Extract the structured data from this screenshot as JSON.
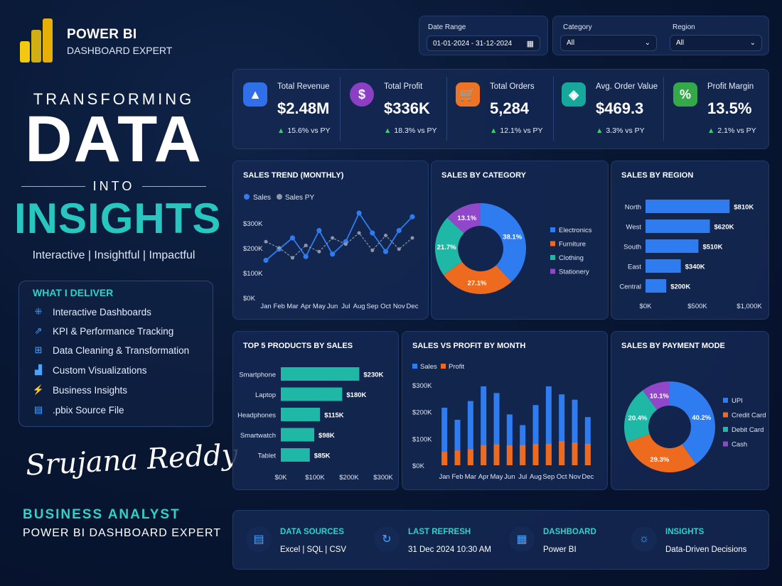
{
  "brand": {
    "line1": "POWER BI",
    "line2": "DASHBOARD EXPERT"
  },
  "hero": {
    "transforming": "TRANSFORMING",
    "data": "DATA",
    "into": "INTO",
    "insights": "INSIGHTS",
    "tagline": "Interactive | Insightful | Impactful"
  },
  "deliver": {
    "title": "WHAT I DELIVER",
    "items": [
      {
        "icon": "dashboard-icon",
        "label": "Interactive Dashboards"
      },
      {
        "icon": "kpi-tracking-icon",
        "label": "KPI & Performance Tracking"
      },
      {
        "icon": "data-cleaning-icon",
        "label": "Data Cleaning & Transformation"
      },
      {
        "icon": "visualization-icon",
        "label": "Custom Visualizations"
      },
      {
        "icon": "insights-icon",
        "label": "Business Insights"
      },
      {
        "icon": "file-icon",
        "label": ".pbix Source File"
      }
    ]
  },
  "profile": {
    "signature": "Srujana Reddy",
    "role": "BUSINESS ANALYST",
    "title": "POWER BI DASHBOARD EXPERT"
  },
  "filters": {
    "date_range_label": "Date Range",
    "date_range_value": "01-01-2024 - 31-12-2024",
    "category_label": "Category",
    "category_value": "All",
    "region_label": "Region",
    "region_value": "All"
  },
  "kpis": [
    {
      "icon": "chart-icon",
      "color": "#2f6fe8",
      "label": "Total Revenue",
      "value": "$2.48M",
      "change": "15.6% vs PY"
    },
    {
      "icon": "dollar-icon",
      "color": "#8a3fc4",
      "label": "Total Profit",
      "value": "$336K",
      "change": "18.3% vs PY"
    },
    {
      "icon": "cart-icon",
      "color": "#ee7322",
      "label": "Total Orders",
      "value": "5,284",
      "change": "12.1% vs PY"
    },
    {
      "icon": "tag-icon",
      "color": "#16a89c",
      "label": "Avg. Order Value",
      "value": "$469.3",
      "change": "3.3% vs PY"
    },
    {
      "icon": "percent-icon",
      "color": "#35a84a",
      "label": "Profit Margin",
      "value": "13.5%",
      "change": "2.1% vs PY"
    }
  ],
  "colors": {
    "blue": "#2f7bf0",
    "orange": "#ee6a1f",
    "teal": "#1fb8a6",
    "purple": "#9147c9",
    "accent": "#2fd2c8",
    "positive": "#3ad36b"
  },
  "chart_data": [
    {
      "type": "line",
      "title": "SALES TREND (MONTHLY)",
      "x": [
        "Jan",
        "Feb",
        "Mar",
        "Apr",
        "May",
        "Jun",
        "Jul",
        "Aug",
        "Sep",
        "Oct",
        "Nov",
        "Dec"
      ],
      "ylim": [
        0,
        400000
      ],
      "yticks": [
        "$0K",
        "$100K",
        "$200K",
        "$300K"
      ],
      "series": [
        {
          "name": "Sales",
          "values": [
            150000,
            195000,
            240000,
            165000,
            270000,
            175000,
            225000,
            340000,
            260000,
            185000,
            270000,
            325000
          ]
        },
        {
          "name": "Sales PY",
          "values": [
            225000,
            200000,
            160000,
            210000,
            185000,
            240000,
            215000,
            260000,
            190000,
            250000,
            195000,
            240000
          ]
        }
      ]
    },
    {
      "type": "pie",
      "title": "SALES BY CATEGORY",
      "categories": [
        "Electronics",
        "Furniture",
        "Clothing",
        "Stationery"
      ],
      "values": [
        38.1,
        27.1,
        21.7,
        13.1
      ],
      "labels": [
        "38.1%",
        "27.1%",
        "21.7%",
        "13.1%"
      ]
    },
    {
      "type": "bar",
      "title": "SALES BY REGION",
      "categories": [
        "North",
        "West",
        "South",
        "East",
        "Central"
      ],
      "values": [
        810000,
        620000,
        510000,
        340000,
        200000
      ],
      "labels": [
        "$810K",
        "$620K",
        "$510K",
        "$340K",
        "$200K"
      ],
      "xlim": [
        0,
        1000000
      ],
      "xticks": [
        "$0K",
        "$500K",
        "$1,000K"
      ]
    },
    {
      "type": "bar",
      "title": "TOP 5 PRODUCTS BY SALES",
      "categories": [
        "Smartphone",
        "Laptop",
        "Headphones",
        "Smartwatch",
        "Tablet"
      ],
      "values": [
        230000,
        180000,
        115000,
        98000,
        85000
      ],
      "labels": [
        "$230K",
        "$180K",
        "$115K",
        "$98K",
        "$85K"
      ],
      "xlim": [
        0,
        300000
      ],
      "xticks": [
        "$0K",
        "$100K",
        "$200K",
        "$300K"
      ]
    },
    {
      "type": "bar",
      "title": "SALES VS PROFIT BY MONTH",
      "categories": [
        "Jan",
        "Feb",
        "Mar",
        "Apr",
        "May",
        "Jun",
        "Jul",
        "Aug",
        "Sep",
        "Oct",
        "Nov",
        "Dec"
      ],
      "ylim": [
        0,
        300000
      ],
      "yticks": [
        "$0K",
        "$100K",
        "$200K",
        "$300K"
      ],
      "series": [
        {
          "name": "Sales",
          "values": [
            215000,
            170000,
            240000,
            295000,
            270000,
            190000,
            150000,
            225000,
            295000,
            265000,
            245000,
            180000
          ]
        },
        {
          "name": "Profit",
          "values": [
            50000,
            55000,
            60000,
            75000,
            78000,
            75000,
            75000,
            80000,
            80000,
            90000,
            85000,
            80000
          ]
        }
      ]
    },
    {
      "type": "pie",
      "title": "SALES BY PAYMENT MODE",
      "categories": [
        "UPI",
        "Credit Card",
        "Debit Card",
        "Cash"
      ],
      "values": [
        40.2,
        29.3,
        20.4,
        10.1
      ],
      "labels": [
        "40.2%",
        "29.3%",
        "20.4%",
        "10.1%"
      ]
    }
  ],
  "footer": [
    {
      "icon": "document-icon",
      "title": "DATA SOURCES",
      "value": "Excel | SQL | CSV"
    },
    {
      "icon": "refresh-icon",
      "title": "LAST REFRESH",
      "value": "31 Dec 2024 10:30 AM"
    },
    {
      "icon": "dashboard-icon",
      "title": "DASHBOARD",
      "value": "Power BI"
    },
    {
      "icon": "lightbulb-icon",
      "title": "INSIGHTS",
      "value": "Data-Driven Decisions"
    }
  ]
}
